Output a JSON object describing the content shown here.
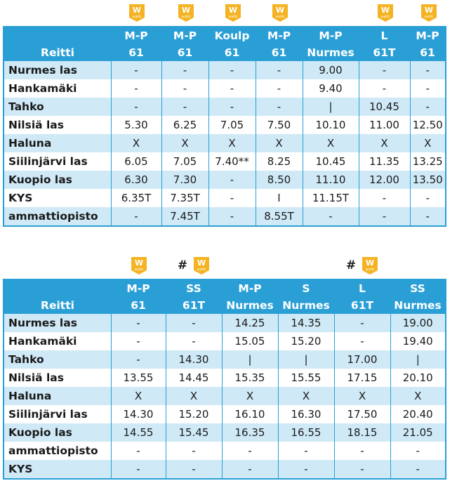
{
  "badge": {
    "letter": "W",
    "sub": "waltti",
    "color": "#f5b324"
  },
  "table1": {
    "header_top": [
      "",
      "M-P",
      "M-P",
      "Koulp",
      "M-P",
      "M-P",
      "L",
      "M-P"
    ],
    "header_bottom": [
      "Reitti",
      "61",
      "61",
      "61",
      "61",
      "Nurmes",
      "61T",
      "61"
    ],
    "badge_cols": [
      1,
      2,
      3,
      4,
      6,
      7
    ],
    "hash_cols": [],
    "rows": [
      [
        "Nurmes las",
        "-",
        "-",
        "-",
        "-",
        "9.00",
        "-",
        "-"
      ],
      [
        "Hankamäki",
        "-",
        "-",
        "-",
        "-",
        "9.40",
        "-",
        "-"
      ],
      [
        "Tahko",
        "-",
        "-",
        "-",
        "-",
        "|",
        "10.45",
        "-"
      ],
      [
        "Nilsiä las",
        "5.30",
        "6.25",
        "7.05",
        "7.50",
        "10.10",
        "11.00",
        "12.50"
      ],
      [
        "Haluna",
        "X",
        "X",
        "X",
        "X",
        "X",
        "X",
        "X"
      ],
      [
        "Siilinjärvi las",
        "6.05",
        "7.05",
        "7.40**",
        "8.25",
        "10.45",
        "11.35",
        "13.25"
      ],
      [
        "Kuopio las",
        "6.30",
        "7.30",
        "-",
        "8.50",
        "11.10",
        "12.00",
        "13.50"
      ],
      [
        "KYS",
        "6.35T",
        "7.35T",
        "-",
        "I",
        "11.15T",
        "-",
        "-"
      ],
      [
        "ammattiopisto",
        "-",
        "7.45T",
        "-",
        "8.55T",
        "-",
        "-",
        "-"
      ]
    ]
  },
  "table2": {
    "header_top": [
      "",
      "M-P",
      "SS",
      "M-P",
      "S",
      "L",
      "SS"
    ],
    "header_bottom": [
      "Reitti",
      "61",
      "61T",
      "Nurmes",
      "Nurmes",
      "61T",
      "Nurmes"
    ],
    "badge_cols": [
      1,
      2,
      5
    ],
    "hash_cols": [
      2,
      5
    ],
    "hash_symbol": "#",
    "rows": [
      [
        "Nurmes las",
        "-",
        "-",
        "14.25",
        "14.35",
        "-",
        "19.00"
      ],
      [
        "Hankamäki",
        "-",
        "-",
        "15.05",
        "15.20",
        "-",
        "19.40"
      ],
      [
        "Tahko",
        "-",
        "14.30",
        "|",
        "|",
        "17.00",
        "|"
      ],
      [
        "Nilsiä las",
        "13.55",
        "14.45",
        "15.35",
        "15.55",
        "17.15",
        "20.10"
      ],
      [
        "Haluna",
        "X",
        "X",
        "X",
        "X",
        "X",
        "X"
      ],
      [
        "Siilinjärvi las",
        "14.30",
        "15.20",
        "16.10",
        "16.30",
        "17.50",
        "20.40"
      ],
      [
        "Kuopio las",
        "14.55",
        "15.45",
        "16.35",
        "16.55",
        "18.15",
        "21.05"
      ],
      [
        "ammattiopisto",
        "-",
        "-",
        "-",
        "-",
        "-",
        "-"
      ],
      [
        "KYS",
        "-",
        "-",
        "-",
        "-",
        "-",
        "-"
      ]
    ]
  }
}
